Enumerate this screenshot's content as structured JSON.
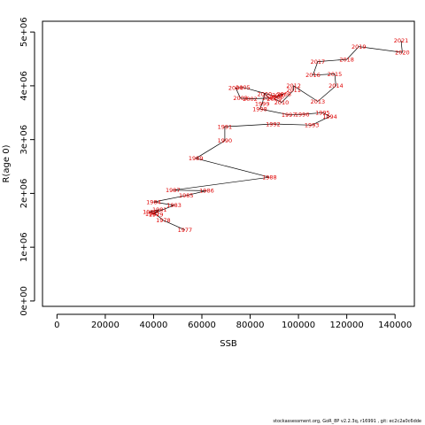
{
  "chart_data": {
    "type": "line",
    "xlabel": "SSB",
    "ylabel": "R(age 0)",
    "xlim": [
      -6000,
      148000
    ],
    "ylim": [
      -100000,
      5200000
    ],
    "x_ticks": [
      {
        "value": 0,
        "label": "0"
      },
      {
        "value": 20000,
        "label": "20000"
      },
      {
        "value": 40000,
        "label": "40000"
      },
      {
        "value": 60000,
        "label": "60000"
      },
      {
        "value": 80000,
        "label": "80000"
      },
      {
        "value": 100000,
        "label": "100000"
      },
      {
        "value": 120000,
        "label": "120000"
      },
      {
        "value": 140000,
        "label": "140000"
      }
    ],
    "y_ticks": [
      {
        "value": 0,
        "label": "0e+00"
      },
      {
        "value": 1000000,
        "label": "1e+06"
      },
      {
        "value": 2000000,
        "label": "2e+06"
      },
      {
        "value": 3000000,
        "label": "3e+06"
      },
      {
        "value": 4000000,
        "label": "4e+06"
      },
      {
        "value": 5000000,
        "label": "5e+06"
      }
    ],
    "label_color": "#e00000",
    "line_color": "#000000",
    "points": [
      {
        "label": "1977",
        "x": 53000,
        "y": 1320000
      },
      {
        "label": "1978",
        "x": 44000,
        "y": 1500000
      },
      {
        "label": "1979",
        "x": 41000,
        "y": 1610000
      },
      {
        "label": "1980",
        "x": 38500,
        "y": 1660000
      },
      {
        "label": "1981",
        "x": 42500,
        "y": 1700000
      },
      {
        "label": "1982",
        "x": 39500,
        "y": 1620000
      },
      {
        "label": "1983",
        "x": 48500,
        "y": 1780000
      },
      {
        "label": "1984",
        "x": 40000,
        "y": 1840000
      },
      {
        "label": "1985",
        "x": 53500,
        "y": 1960000
      },
      {
        "label": "1986",
        "x": 62000,
        "y": 2050000
      },
      {
        "label": "1987",
        "x": 48000,
        "y": 2060000
      },
      {
        "label": "1988",
        "x": 88000,
        "y": 2300000
      },
      {
        "label": "1989",
        "x": 57500,
        "y": 2650000
      },
      {
        "label": "1990",
        "x": 69500,
        "y": 2980000
      },
      {
        "label": "1991",
        "x": 69500,
        "y": 3240000
      },
      {
        "label": "1992",
        "x": 89500,
        "y": 3290000
      },
      {
        "label": "1993",
        "x": 105500,
        "y": 3270000
      },
      {
        "label": "1994",
        "x": 113000,
        "y": 3430000
      },
      {
        "label": "1995",
        "x": 110000,
        "y": 3500000
      },
      {
        "label": "1996",
        "x": 101500,
        "y": 3470000
      },
      {
        "label": "1997",
        "x": 96000,
        "y": 3460000
      },
      {
        "label": "1998",
        "x": 84000,
        "y": 3570000
      },
      {
        "label": "1999",
        "x": 85000,
        "y": 3670000
      },
      {
        "label": "2000",
        "x": 86000,
        "y": 3850000
      },
      {
        "label": "2001",
        "x": 88000,
        "y": 3770000
      },
      {
        "label": "2002",
        "x": 80000,
        "y": 3760000
      },
      {
        "label": "2003",
        "x": 76000,
        "y": 3770000
      },
      {
        "label": "2004",
        "x": 74000,
        "y": 3960000
      },
      {
        "label": "2005",
        "x": 77000,
        "y": 3970000
      },
      {
        "label": "2006",
        "x": 91000,
        "y": 3800000
      },
      {
        "label": "2007",
        "x": 92000,
        "y": 3830000
      },
      {
        "label": "2008",
        "x": 94000,
        "y": 3850000
      },
      {
        "label": "2009",
        "x": 90000,
        "y": 3760000
      },
      {
        "label": "2010",
        "x": 93000,
        "y": 3690000
      },
      {
        "label": "2011",
        "x": 98000,
        "y": 3920000
      },
      {
        "label": "2012",
        "x": 98000,
        "y": 4000000
      },
      {
        "label": "2013",
        "x": 108000,
        "y": 3710000
      },
      {
        "label": "2014",
        "x": 115500,
        "y": 4000000
      },
      {
        "label": "2015",
        "x": 115000,
        "y": 4220000
      },
      {
        "label": "2016",
        "x": 106000,
        "y": 4200000
      },
      {
        "label": "2017",
        "x": 108000,
        "y": 4450000
      },
      {
        "label": "2018",
        "x": 120000,
        "y": 4490000
      },
      {
        "label": "2019",
        "x": 125000,
        "y": 4730000
      },
      {
        "label": "2020",
        "x": 143000,
        "y": 4620000
      },
      {
        "label": "2021",
        "x": 142500,
        "y": 4840000
      }
    ]
  },
  "footer": {
    "text": "stockassessment.org,  GoR_8P  v2.2.3q,  r16991  ,  git: ec2c2a0c6dde"
  }
}
